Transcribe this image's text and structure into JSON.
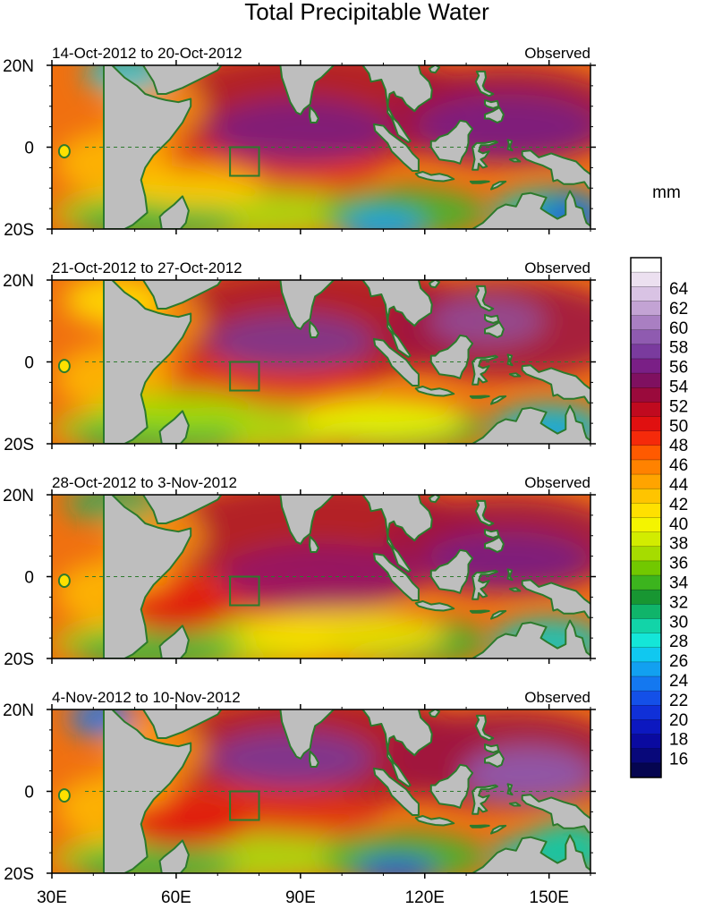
{
  "title": "Total Precipitable Water",
  "panels": [
    {
      "date_range": "14-Oct-2012 to 20-Oct-2012",
      "status": "Observed"
    },
    {
      "date_range": "21-Oct-2012 to 27-Oct-2012",
      "status": "Observed"
    },
    {
      "date_range": "28-Oct-2012 to 3-Nov-2012",
      "status": "Observed"
    },
    {
      "date_range": "4-Nov-2012 to 10-Nov-2012",
      "status": "Observed"
    }
  ],
  "lat_labels": [
    "20N",
    "0",
    "20S"
  ],
  "lon_labels": [
    "30E",
    "60E",
    "90E",
    "120E",
    "150E"
  ],
  "colorbar": {
    "unit": "mm",
    "labels": [
      "64",
      "62",
      "60",
      "58",
      "56",
      "54",
      "52",
      "50",
      "48",
      "46",
      "44",
      "42",
      "40",
      "38",
      "36",
      "34",
      "32",
      "30",
      "28",
      "26",
      "24",
      "22",
      "20",
      "18",
      "16"
    ],
    "colors": [
      "#ffffff",
      "#ece0f0",
      "#d9c3e4",
      "#c3a3d4",
      "#a97fc2",
      "#8f5bb0",
      "#7a3b9e",
      "#7a1f86",
      "#7f1060",
      "#9a0a3c",
      "#c00a1f",
      "#e01010",
      "#f52a0a",
      "#ff5a00",
      "#ff8200",
      "#ffa400",
      "#ffc400",
      "#ffe000",
      "#f4f400",
      "#d2ec00",
      "#a6dc00",
      "#72c800",
      "#3cb41e",
      "#189632",
      "#10b46a",
      "#12d4a8",
      "#14e6d8",
      "#10c8f0",
      "#12a0f0",
      "#1478f0",
      "#1450e8",
      "#1030d8",
      "#0c18c0",
      "#0a0aa0",
      "#08087a",
      "#050550"
    ]
  },
  "colors": {
    "land": "#bebebe",
    "coast": "#2c7a2c",
    "box": "#2c7a2c"
  }
}
